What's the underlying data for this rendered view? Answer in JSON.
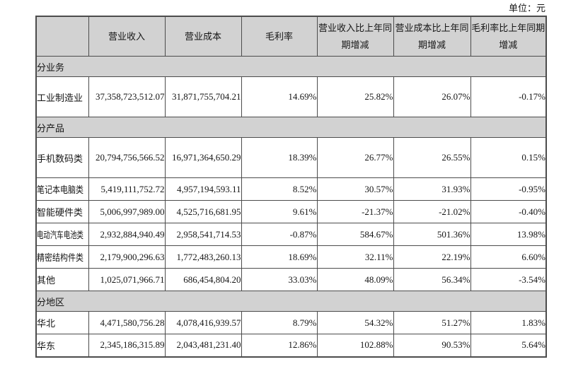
{
  "unit_label": "单位：元",
  "colors": {
    "header_bg": "#d2d2d2",
    "border": "#4c4c4c",
    "text": "#161616",
    "page_bg": "#ffffff"
  },
  "table": {
    "columns": [
      "",
      "营业收入",
      "营业成本",
      "毛利率",
      "营业收入比上年同期增减",
      "营业成本比上年同期增减",
      "毛利率比上年同期增减"
    ],
    "sections": [
      {
        "title": "分业务",
        "rows": [
          {
            "label": "工业制造业",
            "values": [
              "37,358,723,512.07",
              "31,871,755,704.21",
              "14.69%",
              "25.82%",
              "26.07%",
              "-0.17%"
            ]
          }
        ]
      },
      {
        "title": "分产品",
        "rows": [
          {
            "label": "手机数码类",
            "values": [
              "20,794,756,566.52",
              "16,971,364,650.29",
              "18.39%",
              "26.77%",
              "26.55%",
              "0.15%"
            ]
          },
          {
            "label": "笔记本电脑类",
            "values": [
              "5,419,111,752.72",
              "4,957,194,593.11",
              "8.52%",
              "30.57%",
              "31.93%",
              "-0.95%"
            ]
          },
          {
            "label": "智能硬件类",
            "values": [
              "5,006,997,989.00",
              "4,525,716,681.95",
              "9.61%",
              "-21.37%",
              "-21.02%",
              "-0.40%"
            ]
          },
          {
            "label": "电动汽车电池类",
            "values": [
              "2,932,884,940.49",
              "2,958,541,714.53",
              "-0.87%",
              "584.67%",
              "501.36%",
              "13.98%"
            ]
          },
          {
            "label": "精密结构件类",
            "values": [
              "2,179,900,296.63",
              "1,772,483,260.13",
              "18.69%",
              "32.11%",
              "22.19%",
              "6.60%"
            ]
          },
          {
            "label": "其他",
            "values": [
              "1,025,071,966.71",
              "686,454,804.20",
              "33.03%",
              "48.09%",
              "56.34%",
              "-3.54%"
            ]
          }
        ]
      },
      {
        "title": "分地区",
        "rows": [
          {
            "label": "华北",
            "values": [
              "4,471,580,756.28",
              "4,078,416,939.57",
              "8.79%",
              "54.32%",
              "51.27%",
              "1.83%"
            ]
          },
          {
            "label": "华东",
            "values": [
              "2,345,186,315.89",
              "2,043,481,231.40",
              "12.86%",
              "102.88%",
              "90.53%",
              "5.64%"
            ]
          }
        ]
      }
    ]
  }
}
